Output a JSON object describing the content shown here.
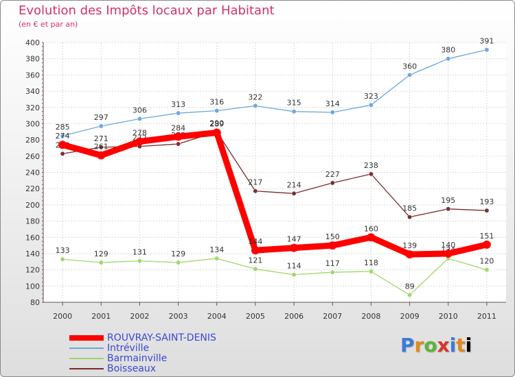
{
  "title": "Evolution des Impôts locaux par Habitant",
  "subtitle": "(en € et par an)",
  "logo": [
    "P",
    "r",
    "o",
    "x",
    "i",
    "t",
    "i"
  ],
  "chart_data": {
    "type": "line",
    "x": [
      "2000",
      "2001",
      "2002",
      "2003",
      "2004",
      "2005",
      "2006",
      "2007",
      "2008",
      "2009",
      "2010",
      "2011"
    ],
    "ylim": [
      80,
      400
    ],
    "yticks": [
      80,
      100,
      120,
      140,
      160,
      180,
      200,
      220,
      240,
      260,
      280,
      300,
      320,
      340,
      360,
      380,
      400
    ],
    "grid": true,
    "legend_position": "bottom-left",
    "series": [
      {
        "name": "ROUVRAY-SAINT-DENIS",
        "color": "#ff0000",
        "values": [
          274,
          261,
          278,
          284,
          289,
          144,
          147,
          150,
          160,
          139,
          140,
          151
        ]
      },
      {
        "name": "Intréville",
        "color": "#6aa6dd",
        "values": [
          285,
          297,
          306,
          313,
          316,
          322,
          315,
          314,
          323,
          360,
          380,
          391
        ]
      },
      {
        "name": "Barmainville",
        "color": "#9ed66a",
        "values": [
          133,
          129,
          131,
          129,
          134,
          121,
          114,
          117,
          118,
          89,
          134,
          120
        ]
      },
      {
        "name": "Boisseaux",
        "color": "#7a2a2a",
        "values": [
          263,
          271,
          272,
          275,
          290,
          217,
          214,
          227,
          238,
          185,
          195,
          193
        ]
      }
    ]
  }
}
